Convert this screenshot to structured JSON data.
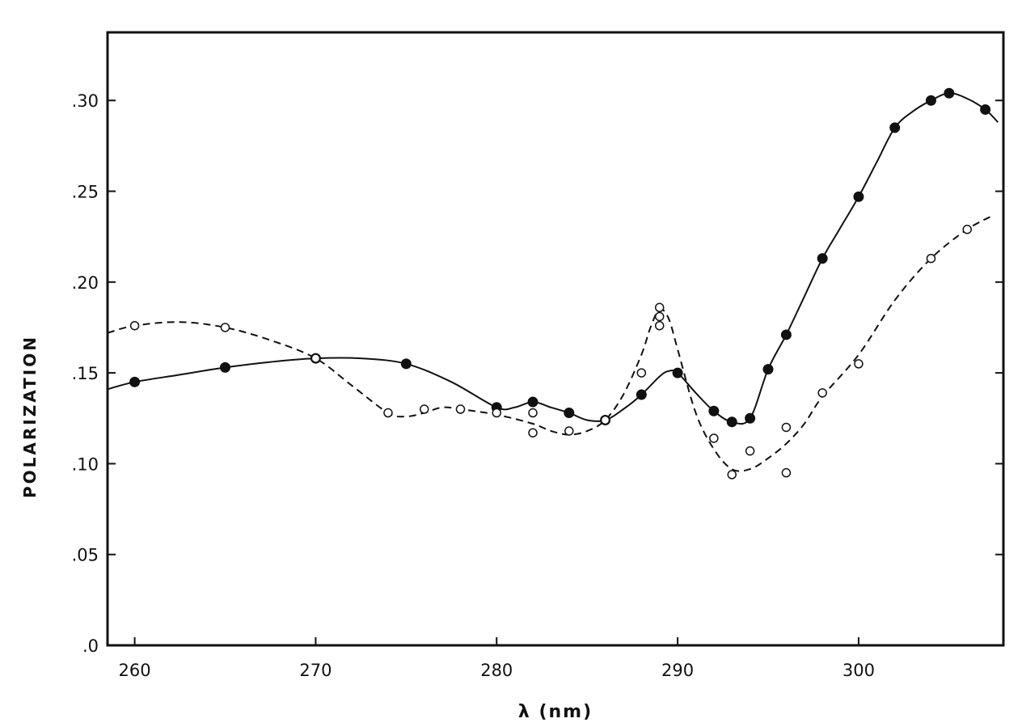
{
  "chart_data": {
    "type": "scatter",
    "title": "",
    "xlabel": "λ (nm)",
    "ylabel": "POLARIZATION",
    "xlim": [
      258.5,
      308
    ],
    "ylim": [
      0,
      0.3375
    ],
    "x_ticks": [
      260,
      270,
      280,
      290,
      300
    ],
    "x_tick_labels": [
      "260",
      "270",
      "280",
      "290",
      "300"
    ],
    "y_ticks": [
      0,
      0.05,
      0.1,
      0.15,
      0.2,
      0.25,
      0.3
    ],
    "y_tick_labels": [
      ".0",
      ".05",
      ".10",
      ".15",
      ".20",
      ".25",
      ".30"
    ],
    "grid": false,
    "series": [
      {
        "marker": "filled-circle",
        "line": "solid",
        "color": "#111111",
        "points": [
          [
            260,
            0.145
          ],
          [
            265,
            0.153
          ],
          [
            270,
            0.158
          ],
          [
            275,
            0.155
          ],
          [
            280,
            0.131
          ],
          [
            282,
            0.134
          ],
          [
            284,
            0.128
          ],
          [
            286,
            0.124
          ],
          [
            288,
            0.138
          ],
          [
            290,
            0.15
          ],
          [
            292,
            0.129
          ],
          [
            293,
            0.123
          ],
          [
            294,
            0.125
          ],
          [
            295,
            0.152
          ],
          [
            296,
            0.171
          ],
          [
            298,
            0.213
          ],
          [
            300,
            0.247
          ],
          [
            302,
            0.285
          ],
          [
            304,
            0.3
          ],
          [
            305,
            0.304
          ],
          [
            307,
            0.295
          ]
        ],
        "curve": [
          [
            258.5,
            0.141
          ],
          [
            260,
            0.145
          ],
          [
            262.5,
            0.149
          ],
          [
            265,
            0.153
          ],
          [
            267.5,
            0.156
          ],
          [
            270,
            0.158
          ],
          [
            272.5,
            0.158
          ],
          [
            275,
            0.155
          ],
          [
            277.5,
            0.145
          ],
          [
            280,
            0.131
          ],
          [
            281,
            0.131
          ],
          [
            282,
            0.134
          ],
          [
            283,
            0.131
          ],
          [
            284,
            0.128
          ],
          [
            285,
            0.124
          ],
          [
            286,
            0.124
          ],
          [
            287,
            0.13
          ],
          [
            288,
            0.138
          ],
          [
            289,
            0.148
          ],
          [
            289.5,
            0.151
          ],
          [
            290,
            0.15
          ],
          [
            291,
            0.139
          ],
          [
            292,
            0.129
          ],
          [
            293,
            0.123
          ],
          [
            294,
            0.125
          ],
          [
            295,
            0.152
          ],
          [
            296,
            0.171
          ],
          [
            297,
            0.192
          ],
          [
            298,
            0.213
          ],
          [
            299,
            0.23
          ],
          [
            300,
            0.247
          ],
          [
            301,
            0.266
          ],
          [
            302,
            0.285
          ],
          [
            303,
            0.294
          ],
          [
            304,
            0.3
          ],
          [
            305,
            0.304
          ],
          [
            306,
            0.301
          ],
          [
            307,
            0.295
          ],
          [
            307.7,
            0.288
          ]
        ]
      },
      {
        "marker": "open-circle",
        "line": "dashed",
        "color": "#111111",
        "points": [
          [
            260,
            0.176
          ],
          [
            265,
            0.175
          ],
          [
            270,
            0.158
          ],
          [
            274,
            0.128
          ],
          [
            276,
            0.13
          ],
          [
            278,
            0.13
          ],
          [
            280,
            0.128
          ],
          [
            282,
            0.128
          ],
          [
            282,
            0.117
          ],
          [
            284,
            0.118
          ],
          [
            286,
            0.124
          ],
          [
            288,
            0.15
          ],
          [
            289,
            0.186
          ],
          [
            289,
            0.181
          ],
          [
            289,
            0.176
          ],
          [
            292,
            0.114
          ],
          [
            293,
            0.094
          ],
          [
            294,
            0.107
          ],
          [
            296,
            0.12
          ],
          [
            296,
            0.095
          ],
          [
            298,
            0.139
          ],
          [
            300,
            0.155
          ],
          [
            304,
            0.213
          ],
          [
            306,
            0.229
          ]
        ],
        "curve": [
          [
            258.5,
            0.172
          ],
          [
            260,
            0.176
          ],
          [
            262.5,
            0.178
          ],
          [
            265,
            0.175
          ],
          [
            267.5,
            0.168
          ],
          [
            270,
            0.158
          ],
          [
            272,
            0.143
          ],
          [
            274,
            0.128
          ],
          [
            275,
            0.126
          ],
          [
            276,
            0.128
          ],
          [
            277,
            0.131
          ],
          [
            278,
            0.13
          ],
          [
            280,
            0.127
          ],
          [
            282,
            0.122
          ],
          [
            283,
            0.118
          ],
          [
            284,
            0.116
          ],
          [
            285,
            0.118
          ],
          [
            286,
            0.124
          ],
          [
            287,
            0.138
          ],
          [
            288,
            0.16
          ],
          [
            288.5,
            0.175
          ],
          [
            289,
            0.185
          ],
          [
            289.5,
            0.18
          ],
          [
            290,
            0.163
          ],
          [
            291,
            0.128
          ],
          [
            292,
            0.108
          ],
          [
            293,
            0.097
          ],
          [
            294,
            0.097
          ],
          [
            295,
            0.103
          ],
          [
            296,
            0.111
          ],
          [
            297,
            0.122
          ],
          [
            298,
            0.137
          ],
          [
            300,
            0.16
          ],
          [
            302,
            0.19
          ],
          [
            304,
            0.213
          ],
          [
            306,
            0.229
          ],
          [
            307.5,
            0.237
          ]
        ]
      }
    ]
  }
}
